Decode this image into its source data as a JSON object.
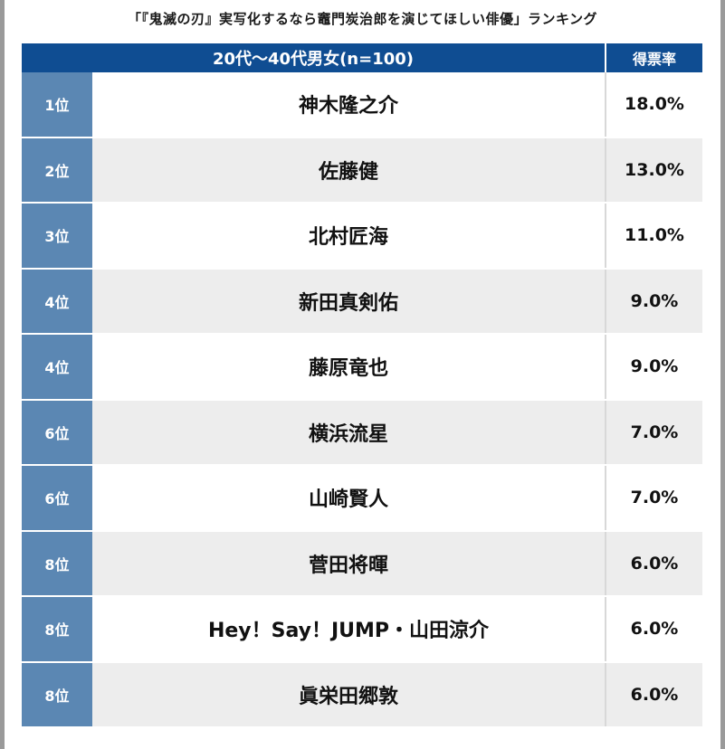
{
  "title": "「『鬼滅の刃』実写化するなら竈門炭治郎を演じてほしい俳優」ランキング",
  "chart_data": {
    "type": "table",
    "title": "「『鬼滅の刃』実写化するなら竈門炭治郎を演じてほしい俳優」ランキング",
    "header": {
      "group": "20代〜40代男女(n=100)",
      "rate": "得票率"
    },
    "rows": [
      {
        "rank": "1位",
        "name": "神木隆之介",
        "rate": "18.0%",
        "value": 18.0
      },
      {
        "rank": "2位",
        "name": "佐藤健",
        "rate": "13.0%",
        "value": 13.0
      },
      {
        "rank": "3位",
        "name": "北村匠海",
        "rate": "11.0%",
        "value": 11.0
      },
      {
        "rank": "4位",
        "name": "新田真剣佑",
        "rate": "9.0%",
        "value": 9.0
      },
      {
        "rank": "4位",
        "name": "藤原竜也",
        "rate": "9.0%",
        "value": 9.0
      },
      {
        "rank": "6位",
        "name": "横浜流星",
        "rate": "7.0%",
        "value": 7.0
      },
      {
        "rank": "6位",
        "name": "山崎賢人",
        "rate": "7.0%",
        "value": 7.0
      },
      {
        "rank": "8位",
        "name": "菅田将暉",
        "rate": "6.0%",
        "value": 6.0
      },
      {
        "rank": "8位",
        "name": "Hey！Say！JUMP・山田涼介",
        "rate": "6.0%",
        "value": 6.0
      },
      {
        "rank": "8位",
        "name": "眞栄田郷敦",
        "rate": "6.0%",
        "value": 6.0
      }
    ]
  },
  "colors": {
    "header_bg": "#0f4d92",
    "rank_bg": "#5b87b3",
    "row_alt_bg": "#ededed"
  }
}
